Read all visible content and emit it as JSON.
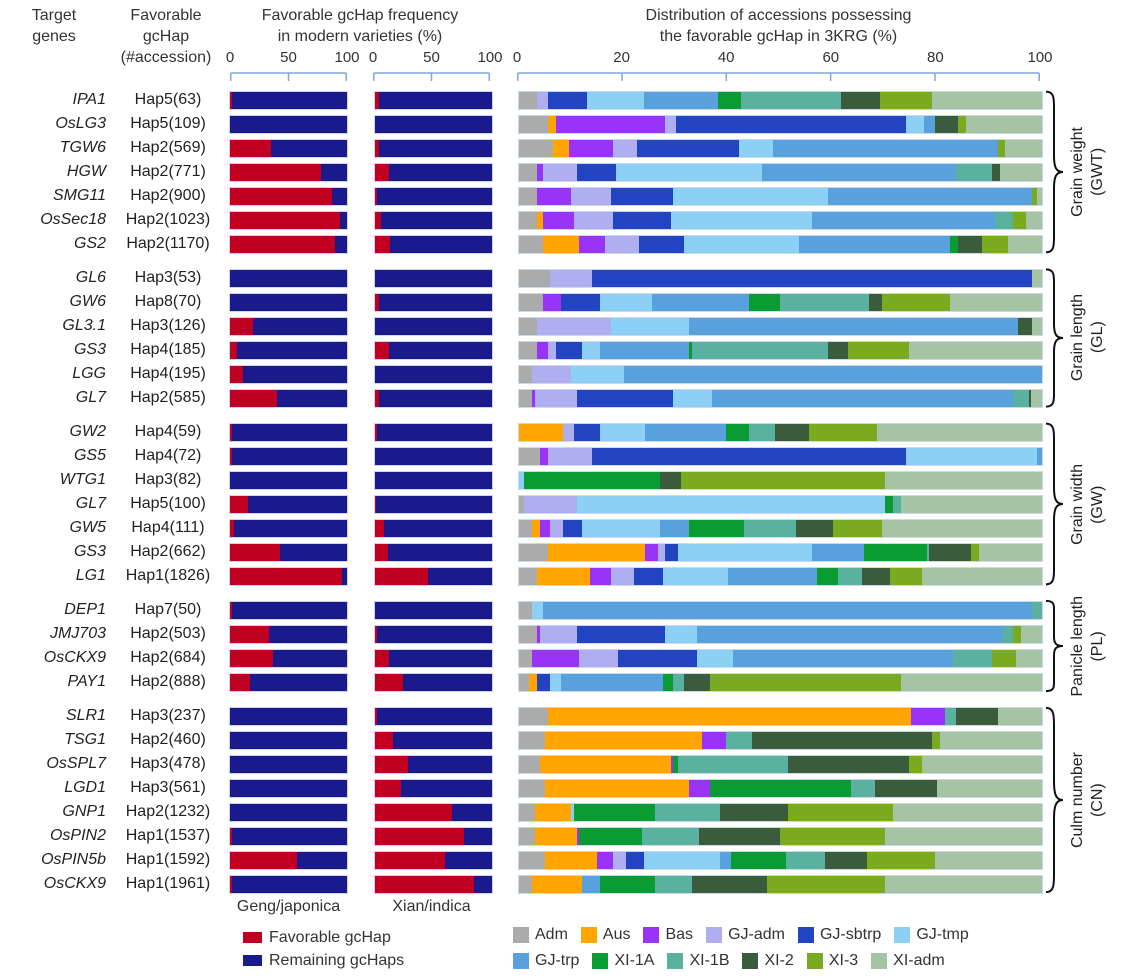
{
  "header": {
    "target_lines": [
      "Target",
      "genes"
    ],
    "favorable_lines": [
      "Favorable",
      "gcHap",
      "(#accession)"
    ],
    "mini_title_lines": [
      "Favorable gcHap frequency",
      "in modern varieties (%)"
    ],
    "dist_title_lines": [
      "Distribution of accessions possessing",
      "the favorable gcHap in 3KRG (%)"
    ]
  },
  "footer": {
    "geng_label": "Geng/japonica",
    "xian_label": "Xian/indica"
  },
  "legend_mini": [
    {
      "label": "Favorable gcHap",
      "color": "#C00021"
    },
    {
      "label": "Remaining gcHaps",
      "color": "#1A1A8C"
    }
  ],
  "legend_dist_rows": [
    [
      "Adm",
      "Aus",
      "Bas",
      "GJ-adm",
      "GJ-sbtrp",
      "GJ-tmp"
    ],
    [
      "GJ-trp",
      "XI-1A",
      "XI-1B",
      "XI-2",
      "XI-3",
      "XI-adm"
    ]
  ],
  "chart_data": {
    "type": "bar",
    "stacked": true,
    "orientation": "horizontal",
    "xlim": [
      0,
      100
    ],
    "mini_ticks": [
      0,
      50,
      100
    ],
    "dist_ticks": [
      0,
      20,
      40,
      60,
      80,
      100
    ],
    "favorable_color": "#C00021",
    "remaining_color": "#1A1A8C",
    "ruler_color": "#7EA9DB",
    "categories_order": [
      "Adm",
      "Aus",
      "Bas",
      "GJ-adm",
      "GJ-sbtrp",
      "GJ-tmp",
      "GJ-trp",
      "XI-1A",
      "XI-1B",
      "XI-2",
      "XI-3",
      "XI-adm"
    ],
    "category_colors": {
      "Adm": "#ABABAB",
      "Aus": "#FFA400",
      "Bas": "#9933F5",
      "GJ-adm": "#AEAEF0",
      "GJ-sbtrp": "#2244C0",
      "GJ-tmp": "#8DD0F5",
      "GJ-trp": "#58A1DC",
      "XI-1A": "#0B9B33",
      "XI-1B": "#5AB1A0",
      "XI-2": "#3A5C3C",
      "XI-3": "#7AAA1F",
      "XI-adm": "#A5C4A4"
    },
    "groups": [
      {
        "label_lines": [
          "Grain weight",
          "(GWT)"
        ],
        "rows": [
          {
            "gene": "IPA1",
            "hap": "Hap5(63)",
            "geng": 2,
            "xian": 3,
            "dist": {
              "Adm": 3.5,
              "GJ-adm": 2,
              "GJ-sbtrp": 7.5,
              "GJ-tmp": 11,
              "GJ-trp": 14,
              "XI-1A": 4.5,
              "XI-1B": 19,
              "XI-2": 7.5,
              "XI-3": 10,
              "XI-adm": 21
            }
          },
          {
            "gene": "OsLG3",
            "hap": "Hap5(109)",
            "geng": 0,
            "xian": 0,
            "dist": {
              "Adm": 5.5,
              "Aus": 1.5,
              "Bas": 21,
              "GJ-adm": 2,
              "GJ-sbtrp": 44,
              "GJ-tmp": 3.5,
              "GJ-trp": 2,
              "XI-2": 4.5,
              "XI-3": 1.5,
              "XI-adm": 14.5
            }
          },
          {
            "gene": "TGW6",
            "hap": "Hap2(569)",
            "geng": 35,
            "xian": 3,
            "dist": {
              "Adm": 6.5,
              "Aus": 3,
              "Bas": 8.5,
              "GJ-adm": 4.5,
              "GJ-sbtrp": 19.5,
              "GJ-tmp": 6.5,
              "GJ-trp": 43,
              "XI-3": 1.5,
              "XI-adm": 7
            }
          },
          {
            "gene": "HGW",
            "hap": "Hap2(771)",
            "geng": 78,
            "xian": 12,
            "dist": {
              "Adm": 3.5,
              "Bas": 1,
              "GJ-adm": 6.5,
              "GJ-sbtrp": 7.5,
              "GJ-tmp": 28,
              "GJ-trp": 37,
              "XI-1B": 7,
              "XI-2": 1.5,
              "XI-adm": 8
            }
          },
          {
            "gene": "SMG11",
            "hap": "Hap2(900)",
            "geng": 87,
            "xian": 2,
            "dist": {
              "Adm": 3.5,
              "Bas": 6.5,
              "GJ-adm": 7.5,
              "GJ-sbtrp": 12,
              "GJ-tmp": 29.5,
              "GJ-trp": 39,
              "XI-3": 1,
              "XI-adm": 1
            }
          },
          {
            "gene": "OsSec18",
            "hap": "Hap2(1023)",
            "geng": 94,
            "xian": 5,
            "dist": {
              "Adm": 3.5,
              "Aus": 1,
              "Bas": 6,
              "GJ-adm": 7.5,
              "GJ-sbtrp": 11,
              "GJ-tmp": 27,
              "GJ-trp": 35,
              "XI-1B": 3.5,
              "XI-3": 2.5,
              "XI-adm": 3
            }
          },
          {
            "gene": "GS2",
            "hap": "Hap2(1170)",
            "geng": 90,
            "xian": 13,
            "dist": {
              "Adm": 4.5,
              "Aus": 7,
              "Bas": 5,
              "GJ-adm": 6.5,
              "GJ-sbtrp": 8.5,
              "GJ-tmp": 22,
              "GJ-trp": 29,
              "XI-1A": 1.5,
              "XI-2": 4.5,
              "XI-3": 5,
              "XI-adm": 6.5
            }
          }
        ]
      },
      {
        "label_lines": [
          "Grain length",
          "(GL)"
        ],
        "rows": [
          {
            "gene": "GL6",
            "hap": "Hap3(53)",
            "geng": 0,
            "xian": 0,
            "dist": {
              "Adm": 6,
              "GJ-adm": 8,
              "GJ-sbtrp": 84,
              "XI-adm": 2
            }
          },
          {
            "gene": "GW6",
            "hap": "Hap8(70)",
            "geng": 0,
            "xian": 3,
            "dist": {
              "Adm": 4.5,
              "Bas": 3.5,
              "GJ-sbtrp": 7.5,
              "GJ-tmp": 10,
              "GJ-trp": 18.5,
              "XI-1A": 6,
              "XI-1B": 17,
              "XI-2": 2.5,
              "XI-3": 13,
              "XI-adm": 17.5
            }
          },
          {
            "gene": "GL3.1",
            "hap": "Hap3(126)",
            "geng": 20,
            "xian": 0,
            "dist": {
              "Adm": 3.5,
              "GJ-adm": 14,
              "GJ-tmp": 15,
              "GJ-trp": 63,
              "XI-2": 2.5,
              "XI-adm": 2
            }
          },
          {
            "gene": "GS3",
            "hap": "Hap4(185)",
            "geng": 6,
            "xian": 12,
            "dist": {
              "Adm": 3.5,
              "Bas": 2,
              "GJ-adm": 1.5,
              "GJ-sbtrp": 5,
              "GJ-tmp": 3.5,
              "GJ-trp": 17,
              "XI-1A": 0.5,
              "XI-1B": 26,
              "XI-2": 4,
              "XI-3": 11.5,
              "XI-adm": 25.5
            }
          },
          {
            "gene": "LGG",
            "hap": "Hap4(195)",
            "geng": 11,
            "xian": 0,
            "dist": {
              "Adm": 2.5,
              "GJ-adm": 7.5,
              "GJ-tmp": 10,
              "GJ-trp": 80
            }
          },
          {
            "gene": "GL7",
            "hap": "Hap2(585)",
            "geng": 40,
            "xian": 3,
            "dist": {
              "Adm": 2.5,
              "Bas": 0.5,
              "GJ-adm": 8,
              "GJ-sbtrp": 18.5,
              "GJ-tmp": 7.5,
              "GJ-trp": 57.5,
              "XI-1B": 3,
              "XI-2": 0.5,
              "XI-adm": 2
            }
          }
        ]
      },
      {
        "label_lines": [
          "Grain width",
          "(GW)"
        ],
        "rows": [
          {
            "gene": "GW2",
            "hap": "Hap4(59)",
            "geng": 2,
            "xian": 2,
            "dist": {
              "Aus": 8.5,
              "GJ-adm": 2,
              "GJ-sbtrp": 5,
              "GJ-tmp": 8.5,
              "GJ-trp": 15.5,
              "XI-1A": 4.5,
              "XI-1B": 5,
              "XI-2": 6.5,
              "XI-3": 13,
              "XI-adm": 31.5
            }
          },
          {
            "gene": "GS5",
            "hap": "Hap4(72)",
            "geng": 2,
            "xian": 0,
            "dist": {
              "Adm": 4,
              "Bas": 1.5,
              "GJ-adm": 8.5,
              "GJ-sbtrp": 60,
              "GJ-tmp": 25,
              "GJ-trp": 1
            }
          },
          {
            "gene": "WTG1",
            "hap": "Hap3(82)",
            "geng": 0,
            "xian": 0,
            "dist": {
              "GJ-tmp": 1,
              "XI-1A": 26,
              "XI-2": 4,
              "XI-3": 39,
              "XI-adm": 30
            }
          },
          {
            "gene": "GL7",
            "hap": "Hap5(100)",
            "geng": 15,
            "xian": 1,
            "dist": {
              "Adm": 1,
              "GJ-adm": 10,
              "GJ-tmp": 59,
              "XI-1A": 1.5,
              "XI-1B": 1.5,
              "XI-adm": 27
            }
          },
          {
            "gene": "GW5",
            "hap": "Hap4(111)",
            "geng": 3,
            "xian": 8,
            "dist": {
              "Adm": 2.5,
              "Aus": 1.5,
              "Bas": 2,
              "GJ-adm": 2.5,
              "GJ-sbtrp": 3.5,
              "GJ-tmp": 15,
              "GJ-trp": 5.5,
              "XI-1A": 10.5,
              "XI-1B": 10,
              "XI-2": 7,
              "XI-3": 9.5,
              "XI-adm": 30.5
            }
          },
          {
            "gene": "GS3",
            "hap": "Hap2(662)",
            "geng": 43,
            "xian": 11,
            "dist": {
              "Adm": 5.5,
              "Aus": 18.5,
              "Bas": 2.5,
              "GJ-adm": 1.5,
              "GJ-sbtrp": 2.5,
              "GJ-tmp": 25.5,
              "GJ-trp": 10,
              "XI-1A": 12,
              "XI-1B": 0.5,
              "XI-2": 8,
              "XI-3": 1.5,
              "XI-adm": 12
            }
          },
          {
            "gene": "LG1",
            "hap": "Hap1(1826)",
            "geng": 96,
            "xian": 45,
            "dist": {
              "Adm": 3.5,
              "Aus": 10,
              "Bas": 4,
              "GJ-adm": 4.5,
              "GJ-sbtrp": 5.5,
              "GJ-tmp": 12.5,
              "GJ-trp": 17,
              "XI-1A": 4,
              "XI-1B": 4.5,
              "XI-2": 5.5,
              "XI-3": 6,
              "XI-adm": 23
            }
          }
        ]
      },
      {
        "label_lines": [
          "Panicle length",
          "(PL)"
        ],
        "rows": [
          {
            "gene": "DEP1",
            "hap": "Hap7(50)",
            "geng": 2,
            "xian": 0,
            "dist": {
              "Adm": 2.5,
              "GJ-tmp": 2,
              "GJ-trp": 93.5,
              "XI-1B": 2
            }
          },
          {
            "gene": "JMJ703",
            "hap": "Hap2(503)",
            "geng": 33,
            "xian": 2,
            "dist": {
              "Adm": 3.5,
              "Bas": 0.5,
              "GJ-adm": 7,
              "GJ-sbtrp": 17,
              "GJ-tmp": 6,
              "GJ-trp": 58.5,
              "XI-1B": 2,
              "XI-3": 1.5,
              "XI-adm": 4
            }
          },
          {
            "gene": "OsCKX9",
            "hap": "Hap2(684)",
            "geng": 37,
            "xian": 12,
            "dist": {
              "Adm": 2.5,
              "Bas": 9,
              "GJ-adm": 7.5,
              "GJ-sbtrp": 15,
              "GJ-tmp": 7,
              "GJ-trp": 42,
              "XI-1B": 7.5,
              "XI-3": 4.5,
              "XI-adm": 5
            }
          },
          {
            "gene": "PAY1",
            "hap": "Hap2(888)",
            "geng": 17,
            "xian": 24,
            "dist": {
              "Adm": 2,
              "Aus": 1.5,
              "GJ-sbtrp": 2.5,
              "GJ-tmp": 2,
              "GJ-trp": 19.5,
              "XI-1A": 2,
              "XI-1B": 2,
              "XI-2": 5,
              "XI-3": 36.5,
              "XI-adm": 27
            }
          }
        ]
      },
      {
        "label_lines": [
          "Culm number",
          "(CN)"
        ],
        "rows": [
          {
            "gene": "SLR1",
            "hap": "Hap3(237)",
            "geng": 0,
            "xian": 2,
            "dist": {
              "Adm": 5.5,
              "Aus": 69.5,
              "Bas": 6.5,
              "XI-1B": 2,
              "XI-2": 8,
              "XI-adm": 8.5
            }
          },
          {
            "gene": "TSG1",
            "hap": "Hap2(460)",
            "geng": 0,
            "xian": 15,
            "dist": {
              "Adm": 5,
              "Aus": 30,
              "Bas": 4.5,
              "XI-1B": 5,
              "XI-2": 34.5,
              "XI-3": 1.5,
              "XI-adm": 19.5
            }
          },
          {
            "gene": "OsSPL7",
            "hap": "Hap3(478)",
            "geng": 0,
            "xian": 28,
            "dist": {
              "Adm": 4,
              "Aus": 25,
              "Bas": 0.5,
              "XI-1A": 1,
              "XI-1B": 21,
              "XI-2": 23,
              "XI-3": 2.5,
              "XI-adm": 23
            }
          },
          {
            "gene": "LGD1",
            "hap": "Hap3(561)",
            "geng": 0,
            "xian": 22,
            "dist": {
              "Adm": 5,
              "Aus": 27.5,
              "Bas": 4,
              "XI-1A": 27,
              "XI-1B": 4.5,
              "XI-2": 12,
              "XI-adm": 20
            }
          },
          {
            "gene": "GNP1",
            "hap": "Hap2(1232)",
            "geng": 0,
            "xian": 66,
            "dist": {
              "Adm": 3,
              "Aus": 7,
              "GJ-tmp": 0.5,
              "XI-1A": 15.5,
              "XI-1B": 12.5,
              "XI-2": 13,
              "XI-3": 20,
              "XI-adm": 28.5
            }
          },
          {
            "gene": "OsPIN2",
            "hap": "Hap1(1537)",
            "geng": 2,
            "xian": 76,
            "dist": {
              "Adm": 3,
              "Aus": 8,
              "Bas": 0.5,
              "XI-1A": 12,
              "XI-1B": 11,
              "XI-2": 15.5,
              "XI-3": 20,
              "XI-adm": 30
            }
          },
          {
            "gene": "OsPIN5b",
            "hap": "Hap1(1592)",
            "geng": 57,
            "xian": 60,
            "dist": {
              "Adm": 5,
              "Aus": 10,
              "Bas": 3,
              "GJ-adm": 2.5,
              "GJ-sbtrp": 3.5,
              "GJ-tmp": 14.5,
              "GJ-trp": 2,
              "XI-1A": 10.5,
              "XI-1B": 7.5,
              "XI-2": 8,
              "XI-3": 13,
              "XI-adm": 20.5
            }
          },
          {
            "gene": "OsCKX9",
            "hap": "Hap1(1961)",
            "geng": 2,
            "xian": 85,
            "dist": {
              "Adm": 2.5,
              "Aus": 9.5,
              "GJ-trp": 3.5,
              "XI-1A": 10.5,
              "XI-1B": 7,
              "XI-2": 14.5,
              "XI-3": 22.5,
              "XI-adm": 30
            }
          }
        ]
      }
    ]
  }
}
